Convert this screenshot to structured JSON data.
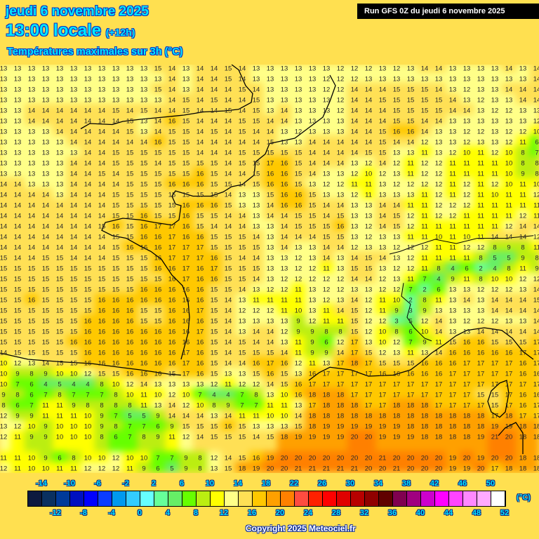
{
  "header": {
    "date": "jeudi 6 novembre 2025",
    "time": "13:00 locale",
    "lead": "(+12h)",
    "parameter": "Températures maximales sur 3h (°C)",
    "run": "Run GFS 0Z du jeudi 6 novembre 2025"
  },
  "legend": {
    "unit": "(°C)",
    "top_labels": [
      "-14",
      "-10",
      "-6",
      "-2",
      "2",
      "6",
      "10",
      "14",
      "18",
      "22",
      "26",
      "30",
      "34",
      "38",
      "42",
      "46",
      "50"
    ],
    "bottom_labels": [
      "-12",
      "-8",
      "-4",
      "0",
      "4",
      "8",
      "12",
      "16",
      "20",
      "24",
      "28",
      "32",
      "36",
      "40",
      "44",
      "48",
      "52"
    ],
    "colors": [
      "#0d1a3f",
      "#0a3060",
      "#003a99",
      "#0010c0",
      "#0000ff",
      "#0a3cff",
      "#0099ee",
      "#33ccff",
      "#66ffff",
      "#66ff99",
      "#66ee66",
      "#66ff00",
      "#bbee11",
      "#ffff00",
      "#ffff88",
      "#ffe055",
      "#ffc800",
      "#ffa000",
      "#ff8000",
      "#ff4c40",
      "#ff2000",
      "#ff0000",
      "#e00000",
      "#b80000",
      "#900000",
      "#600000",
      "#800050",
      "#a00080",
      "#cc00cc",
      "#ff00ff",
      "#ff44ff",
      "#ff88ff",
      "#ffaaff",
      "#ffffff"
    ]
  },
  "copyright": "Copyright 2025 Meteociel.fr",
  "temperature_grid": [
    [
      13,
      13,
      13,
      13,
      13,
      13,
      13,
      13,
      13,
      13,
      13,
      15,
      14,
      13,
      14,
      14,
      15,
      14,
      13,
      13,
      13,
      13,
      13,
      13,
      12,
      12,
      12,
      13,
      12,
      13,
      14,
      14,
      13,
      13,
      13,
      13,
      14,
      13,
      14
    ],
    [
      13,
      13,
      13,
      13,
      13,
      13,
      13,
      13,
      13,
      13,
      13,
      13,
      14,
      13,
      14,
      14,
      15,
      14,
      13,
      13,
      13,
      13,
      13,
      12,
      12,
      12,
      13,
      13,
      13,
      13,
      13,
      13,
      13,
      13,
      13,
      13,
      13,
      13,
      14
    ],
    [
      13,
      13,
      13,
      13,
      13,
      13,
      13,
      13,
      13,
      13,
      13,
      15,
      14,
      13,
      14,
      14,
      14,
      15,
      14,
      13,
      13,
      13,
      13,
      12,
      12,
      14,
      14,
      14,
      15,
      15,
      15,
      14,
      13,
      12,
      13,
      13,
      14,
      14,
      14
    ],
    [
      13,
      13,
      13,
      13,
      13,
      13,
      13,
      13,
      13,
      13,
      13,
      13,
      14,
      15,
      14,
      15,
      14,
      14,
      15,
      13,
      13,
      13,
      13,
      13,
      12,
      14,
      14,
      15,
      15,
      15,
      15,
      15,
      14,
      13,
      12,
      13,
      13,
      14,
      14
    ],
    [
      13,
      13,
      14,
      14,
      14,
      14,
      14,
      14,
      15,
      14,
      15,
      14,
      14,
      15,
      14,
      14,
      15,
      14,
      15,
      13,
      14,
      13,
      13,
      13,
      12,
      14,
      14,
      14,
      15,
      15,
      15,
      15,
      14,
      14,
      13,
      12,
      12,
      13,
      13
    ],
    [
      13,
      13,
      14,
      14,
      14,
      14,
      14,
      14,
      14,
      15,
      13,
      14,
      16,
      15,
      14,
      14,
      14,
      15,
      15,
      14,
      14,
      13,
      13,
      13,
      13,
      14,
      14,
      14,
      15,
      15,
      14,
      14,
      13,
      13,
      13,
      13,
      13,
      13,
      12
    ],
    [
      13,
      13,
      13,
      13,
      14,
      14,
      14,
      14,
      14,
      15,
      13,
      14,
      15,
      15,
      14,
      15,
      14,
      15,
      14,
      14,
      13,
      12,
      13,
      13,
      13,
      14,
      14,
      15,
      16,
      16,
      14,
      13,
      13,
      12,
      12,
      13,
      12,
      12,
      10
    ],
    [
      13,
      13,
      13,
      13,
      13,
      14,
      14,
      14,
      14,
      14,
      14,
      16,
      15,
      15,
      14,
      14,
      14,
      14,
      14,
      15,
      13,
      13,
      14,
      14,
      14,
      14,
      14,
      15,
      14,
      14,
      12,
      13,
      13,
      12,
      13,
      13,
      12,
      11,
      6
    ],
    [
      13,
      13,
      13,
      13,
      13,
      13,
      14,
      14,
      15,
      15,
      15,
      15,
      15,
      15,
      14,
      14,
      14,
      15,
      15,
      15,
      15,
      15,
      14,
      14,
      14,
      14,
      15,
      15,
      13,
      13,
      11,
      13,
      12,
      10,
      11,
      12,
      10,
      8,
      7
    ],
    [
      13,
      13,
      13,
      13,
      13,
      14,
      14,
      14,
      15,
      15,
      15,
      14,
      15,
      15,
      15,
      15,
      14,
      15,
      15,
      17,
      16,
      15,
      14,
      14,
      14,
      13,
      12,
      14,
      12,
      11,
      12,
      12,
      11,
      11,
      11,
      11,
      10,
      8,
      8
    ],
    [
      13,
      13,
      13,
      13,
      13,
      14,
      14,
      15,
      14,
      15,
      15,
      15,
      15,
      15,
      16,
      15,
      14,
      14,
      15,
      16,
      16,
      15,
      14,
      13,
      13,
      12,
      10,
      12,
      13,
      11,
      12,
      12,
      11,
      11,
      11,
      11,
      10,
      9,
      8
    ],
    [
      14,
      14,
      13,
      13,
      13,
      14,
      14,
      14,
      14,
      15,
      15,
      15,
      16,
      16,
      16,
      15,
      15,
      14,
      15,
      16,
      16,
      15,
      13,
      12,
      12,
      11,
      11,
      13,
      12,
      12,
      12,
      12,
      11,
      12,
      11,
      12,
      10,
      11,
      10
    ],
    [
      14,
      14,
      14,
      14,
      13,
      14,
      14,
      14,
      15,
      15,
      15,
      15,
      15,
      15,
      15,
      15,
      14,
      13,
      13,
      15,
      16,
      16,
      15,
      13,
      13,
      12,
      11,
      13,
      13,
      13,
      11,
      12,
      11,
      12,
      11,
      10,
      11,
      11,
      12
    ],
    [
      14,
      14,
      14,
      14,
      14,
      14,
      14,
      14,
      15,
      15,
      15,
      15,
      15,
      16,
      16,
      16,
      15,
      13,
      13,
      14,
      16,
      16,
      15,
      14,
      14,
      13,
      13,
      14,
      14,
      11,
      11,
      12,
      12,
      12,
      11,
      11,
      11,
      11,
      11
    ],
    [
      14,
      14,
      14,
      14,
      14,
      14,
      14,
      14,
      15,
      15,
      16,
      15,
      15,
      16,
      15,
      15,
      14,
      14,
      13,
      14,
      14,
      15,
      15,
      14,
      15,
      13,
      13,
      14,
      15,
      12,
      11,
      12,
      12,
      11,
      11,
      11,
      11,
      12,
      11
    ],
    [
      14,
      14,
      14,
      14,
      14,
      14,
      14,
      15,
      16,
      15,
      16,
      17,
      17,
      16,
      15,
      14,
      14,
      14,
      13,
      13,
      14,
      15,
      15,
      15,
      16,
      13,
      12,
      14,
      15,
      12,
      11,
      11,
      11,
      11,
      11,
      11,
      12,
      14,
      14
    ],
    [
      14,
      14,
      14,
      14,
      14,
      14,
      14,
      14,
      15,
      15,
      16,
      16,
      17,
      16,
      16,
      15,
      15,
      15,
      14,
      13,
      14,
      14,
      14,
      15,
      15,
      13,
      12,
      13,
      13,
      11,
      11,
      10,
      11,
      10,
      11,
      14,
      14,
      14,
      12
    ],
    [
      14,
      14,
      14,
      14,
      14,
      14,
      14,
      14,
      15,
      16,
      16,
      16,
      17,
      17,
      17,
      15,
      15,
      15,
      15,
      13,
      14,
      13,
      13,
      14,
      14,
      12,
      13,
      13,
      12,
      12,
      12,
      11,
      11,
      12,
      12,
      8,
      9,
      8,
      11
    ],
    [
      15,
      14,
      14,
      15,
      15,
      14,
      14,
      14,
      15,
      15,
      15,
      16,
      17,
      17,
      17,
      16,
      15,
      14,
      14,
      13,
      13,
      12,
      13,
      14,
      13,
      14,
      15,
      14,
      13,
      12,
      11,
      11,
      11,
      11,
      8,
      5,
      5,
      9,
      8
    ],
    [
      15,
      15,
      15,
      15,
      15,
      15,
      15,
      15,
      15,
      15,
      15,
      16,
      16,
      17,
      16,
      17,
      15,
      15,
      15,
      13,
      13,
      12,
      12,
      11,
      13,
      15,
      15,
      13,
      12,
      12,
      11,
      8,
      4,
      6,
      2,
      4,
      8,
      11,
      9
    ],
    [
      15,
      15,
      15,
      15,
      15,
      15,
      15,
      15,
      15,
      15,
      15,
      15,
      16,
      17,
      16,
      16,
      15,
      15,
      14,
      13,
      12,
      12,
      12,
      12,
      12,
      14,
      14,
      12,
      13,
      11,
      7,
      4,
      9,
      11,
      8,
      10,
      10,
      12,
      12
    ],
    [
      15,
      15,
      15,
      15,
      15,
      15,
      15,
      15,
      15,
      15,
      16,
      16,
      16,
      16,
      16,
      15,
      15,
      14,
      13,
      12,
      12,
      11,
      13,
      12,
      12,
      13,
      13,
      12,
      12,
      7,
      2,
      6,
      13,
      13,
      12,
      12,
      12,
      13,
      14
    ],
    [
      15,
      15,
      16,
      15,
      15,
      15,
      15,
      16,
      16,
      16,
      16,
      16,
      16,
      16,
      16,
      15,
      14,
      13,
      11,
      11,
      11,
      11,
      13,
      12,
      13,
      14,
      12,
      11,
      10,
      2,
      8,
      11,
      13,
      14,
      13,
      14,
      14,
      14,
      15
    ],
    [
      15,
      15,
      15,
      15,
      15,
      15,
      15,
      16,
      16,
      16,
      15,
      15,
      16,
      16,
      17,
      15,
      14,
      12,
      12,
      12,
      11,
      10,
      13,
      11,
      14,
      15,
      12,
      11,
      9,
      3,
      9,
      13,
      13,
      13,
      13,
      14,
      14,
      14,
      14
    ],
    [
      15,
      15,
      15,
      15,
      15,
      15,
      16,
      16,
      16,
      16,
      15,
      15,
      16,
      16,
      16,
      15,
      14,
      13,
      13,
      13,
      13,
      9,
      12,
      11,
      11,
      15,
      12,
      12,
      3,
      5,
      12,
      14,
      13,
      12,
      12,
      12,
      13,
      13,
      14
    ],
    [
      15,
      15,
      15,
      15,
      15,
      15,
      16,
      16,
      16,
      16,
      16,
      16,
      16,
      16,
      17,
      15,
      14,
      13,
      14,
      14,
      12,
      9,
      9,
      8,
      8,
      15,
      12,
      10,
      8,
      6,
      10,
      14,
      13,
      13,
      14,
      14,
      14,
      14,
      14
    ],
    [
      15,
      15,
      15,
      15,
      15,
      16,
      16,
      16,
      16,
      16,
      16,
      16,
      16,
      16,
      16,
      15,
      14,
      15,
      14,
      14,
      13,
      11,
      9,
      6,
      12,
      17,
      13,
      10,
      12,
      7,
      9,
      11,
      15,
      16,
      16,
      15,
      15,
      15,
      17
    ],
    [
      14,
      15,
      15,
      15,
      15,
      15,
      16,
      16,
      16,
      16,
      16,
      16,
      16,
      17,
      16,
      15,
      14,
      15,
      15,
      15,
      14,
      11,
      9,
      9,
      14,
      17,
      15,
      12,
      13,
      11,
      13,
      14,
      16,
      16,
      16,
      16,
      16,
      17,
      17
    ],
    [
      10,
      12,
      13,
      14,
      15,
      15,
      16,
      16,
      16,
      16,
      16,
      16,
      16,
      17,
      16,
      15,
      14,
      14,
      16,
      17,
      16,
      12,
      11,
      13,
      17,
      18,
      17,
      15,
      15,
      15,
      16,
      16,
      16,
      17,
      17,
      17,
      17,
      16,
      17
    ],
    [
      10,
      9,
      8,
      9,
      10,
      10,
      12,
      15,
      15,
      16,
      16,
      16,
      15,
      17,
      16,
      15,
      13,
      13,
      15,
      16,
      15,
      13,
      16,
      17,
      17,
      17,
      17,
      16,
      16,
      16,
      16,
      16,
      17,
      17,
      17,
      17,
      17,
      16,
      16
    ],
    [
      10,
      7,
      6,
      4,
      5,
      4,
      4,
      8,
      10,
      12,
      14,
      13,
      13,
      13,
      13,
      12,
      11,
      12,
      12,
      14,
      15,
      16,
      17,
      17,
      17,
      17,
      17,
      17,
      17,
      17,
      17,
      17,
      17,
      17,
      17,
      17,
      17,
      17,
      17
    ],
    [
      9,
      8,
      6,
      7,
      8,
      7,
      7,
      7,
      8,
      10,
      11,
      10,
      12,
      10,
      7,
      4,
      4,
      7,
      8,
      13,
      10,
      16,
      18,
      18,
      18,
      17,
      17,
      17,
      17,
      17,
      17,
      17,
      17,
      17,
      15,
      15,
      17,
      16,
      16
    ],
    [
      8,
      6,
      7,
      11,
      11,
      9,
      8,
      8,
      8,
      8,
      11,
      13,
      14,
      12,
      10,
      8,
      9,
      7,
      7,
      11,
      11,
      13,
      17,
      18,
      18,
      18,
      17,
      17,
      18,
      18,
      18,
      17,
      17,
      17,
      17,
      15,
      17,
      16,
      17
    ],
    [
      12,
      9,
      9,
      11,
      11,
      11,
      10,
      9,
      7,
      5,
      5,
      9,
      14,
      14,
      14,
      13,
      14,
      11,
      11,
      10,
      10,
      14,
      18,
      18,
      18,
      18,
      18,
      18,
      18,
      18,
      18,
      18,
      18,
      18,
      18,
      17,
      18,
      17,
      17
    ],
    [
      13,
      12,
      10,
      9,
      10,
      10,
      10,
      9,
      8,
      7,
      7,
      6,
      9,
      15,
      15,
      15,
      16,
      15,
      13,
      13,
      13,
      15,
      18,
      19,
      19,
      19,
      19,
      19,
      19,
      18,
      18,
      18,
      18,
      18,
      18,
      19,
      19,
      18,
      18
    ],
    [
      12,
      11,
      9,
      9,
      10,
      10,
      10,
      8,
      6,
      7,
      8,
      9,
      11,
      12,
      14,
      15,
      15,
      15,
      14,
      15,
      18,
      19,
      19,
      19,
      19,
      20,
      20,
      19,
      19,
      19,
      18,
      18,
      18,
      18,
      19,
      21,
      20,
      18,
      18
    ],
    null,
    [
      11,
      11,
      10,
      9,
      6,
      8,
      10,
      10,
      12,
      10,
      10,
      7,
      7,
      9,
      8,
      12,
      14,
      15,
      16,
      19,
      20,
      20,
      20,
      20,
      20,
      20,
      20,
      21,
      20,
      20,
      20,
      20,
      19,
      20,
      19,
      20,
      20,
      18,
      18
    ],
    [
      12,
      11,
      10,
      10,
      11,
      11,
      12,
      12,
      12,
      11,
      9,
      6,
      5,
      9,
      8,
      13,
      15,
      18,
      19,
      20,
      20,
      21,
      21,
      21,
      21,
      21,
      20,
      20,
      21,
      20,
      20,
      20,
      19,
      19,
      20,
      17,
      18,
      18,
      18
    ]
  ]
}
